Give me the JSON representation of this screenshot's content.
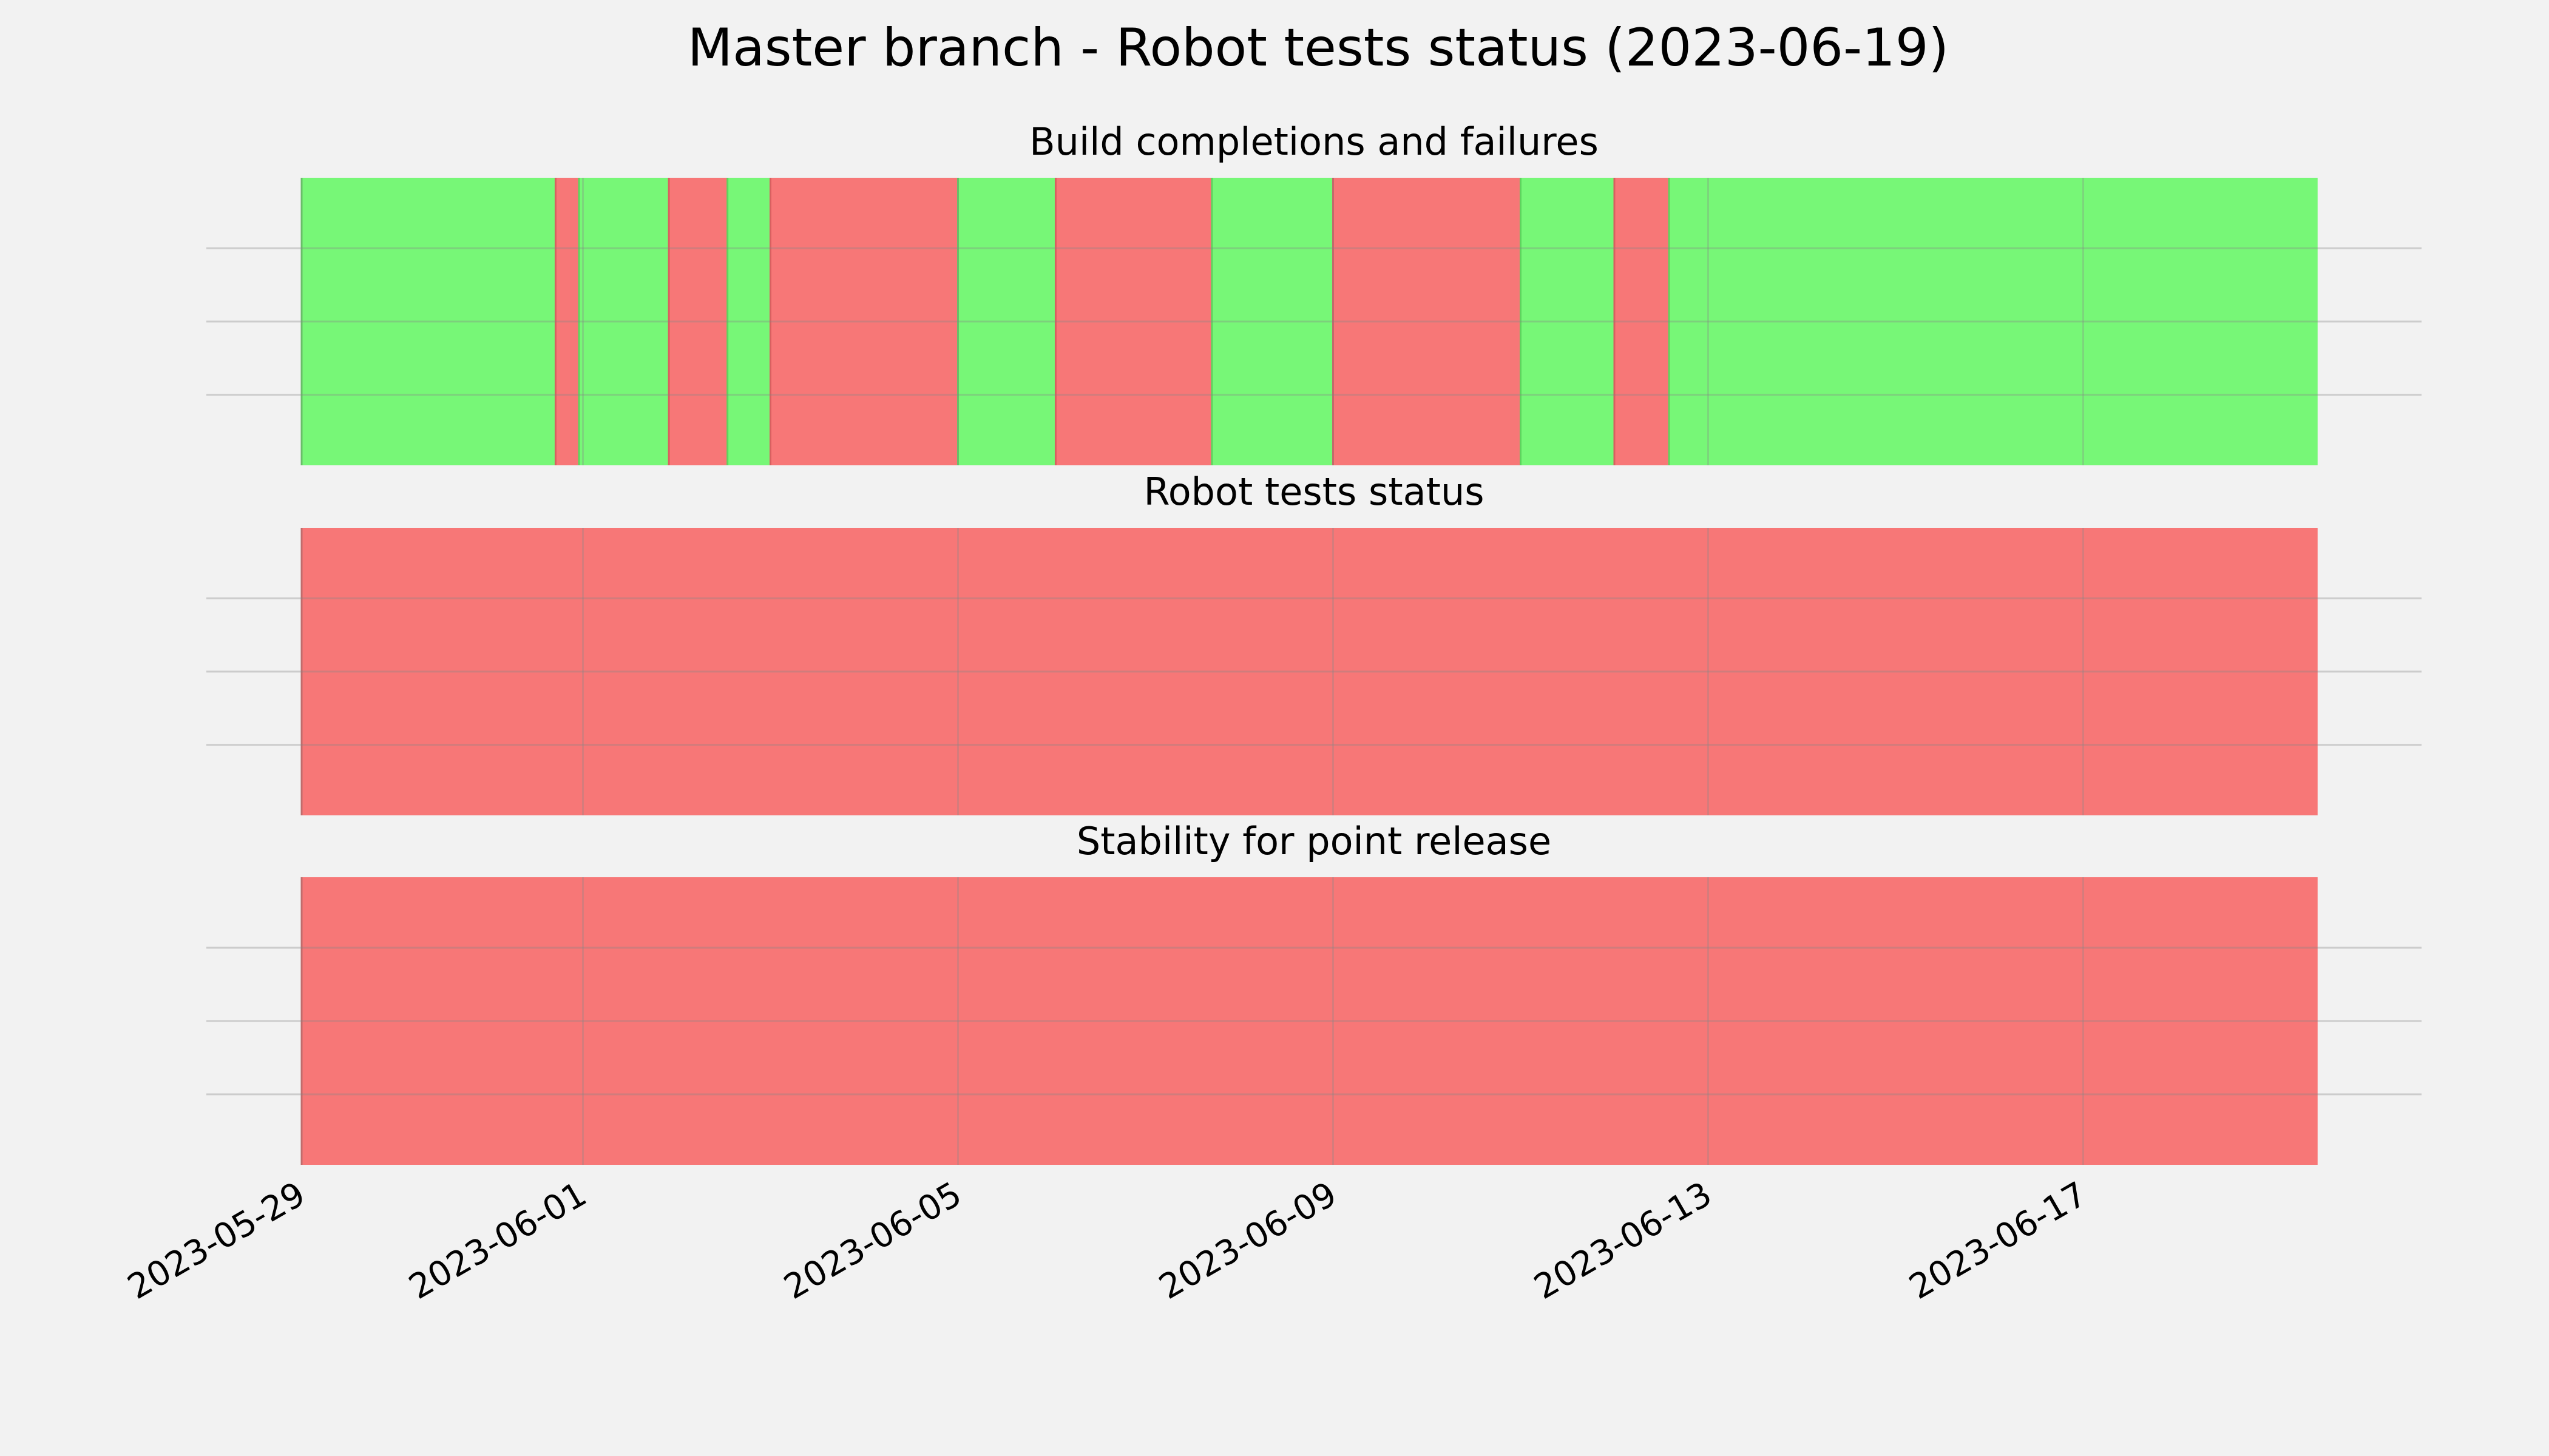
{
  "chart_data": {
    "type": "timeline",
    "title": "Master branch - Robot tests status (2023-06-19)",
    "x_start": "2023-05-29",
    "x_end": "2023-06-19",
    "xlim": [
      "2023-05-28T23:00",
      "2023-06-20T12:00"
    ],
    "x_ticks": [
      "2023-05-29",
      "2023-06-01",
      "2023-06-05",
      "2023-06-09",
      "2023-06-13",
      "2023-06-17"
    ],
    "grid": true,
    "colors": {
      "pass": "#77f777",
      "fail": "#f77777",
      "background": "#f2f2f2"
    },
    "panels": [
      {
        "title": "Build completions and failures",
        "segments": [
          {
            "start": "2023-05-29T00:00",
            "end": "2023-05-31T17:00",
            "status": "pass"
          },
          {
            "start": "2023-05-31T17:00",
            "end": "2023-05-31T23:00",
            "status": "fail"
          },
          {
            "start": "2023-05-31T23:00",
            "end": "2023-06-01T22:00",
            "status": "pass"
          },
          {
            "start": "2023-06-01T22:00",
            "end": "2023-06-02T13:00",
            "status": "fail"
          },
          {
            "start": "2023-06-02T13:00",
            "end": "2023-06-03T00:00",
            "status": "pass"
          },
          {
            "start": "2023-06-03T00:00",
            "end": "2023-06-05T00:00",
            "status": "fail"
          },
          {
            "start": "2023-06-05T00:00",
            "end": "2023-06-06T01:00",
            "status": "pass"
          },
          {
            "start": "2023-06-06T01:00",
            "end": "2023-06-07T17:00",
            "status": "fail"
          },
          {
            "start": "2023-06-07T17:00",
            "end": "2023-06-09T00:00",
            "status": "pass"
          },
          {
            "start": "2023-06-09T00:00",
            "end": "2023-06-11T00:00",
            "status": "fail"
          },
          {
            "start": "2023-06-11T00:00",
            "end": "2023-06-12T00:00",
            "status": "pass"
          },
          {
            "start": "2023-06-12T00:00",
            "end": "2023-06-12T14:00",
            "status": "fail"
          },
          {
            "start": "2023-06-12T14:00",
            "end": "2023-06-19T12:00",
            "status": "pass"
          }
        ]
      },
      {
        "title": "Robot tests status",
        "segments": [
          {
            "start": "2023-05-29T00:00",
            "end": "2023-06-19T12:00",
            "status": "fail"
          }
        ]
      },
      {
        "title": "Stability for point release",
        "segments": [
          {
            "start": "2023-05-29T00:00",
            "end": "2023-06-19T12:00",
            "status": "fail"
          }
        ]
      }
    ]
  }
}
